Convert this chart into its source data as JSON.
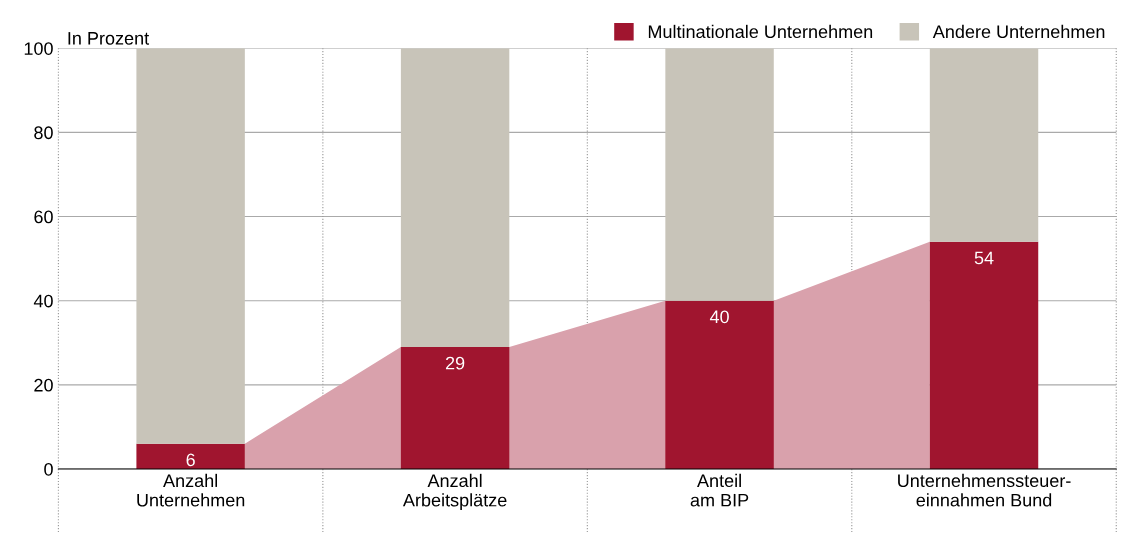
{
  "chart_data": {
    "type": "bar",
    "stacked": true,
    "ylabel": "In Prozent",
    "categories": [
      "Anzahl\nUnternehmen",
      "Anzahl\nArbeitsplätze",
      "Anteil\nam BIP",
      "Unternehmenssteuer-\neinnahmen Bund"
    ],
    "series": [
      {
        "name": "Multinationale Unternehmen",
        "color": "#a0152f",
        "values": [
          6,
          29,
          40,
          54
        ],
        "value_labels": [
          "6",
          "29",
          "40",
          "54"
        ]
      },
      {
        "name": "Andere Unternehmen",
        "color": "#c8c4b9",
        "values": [
          94,
          71,
          60,
          46
        ]
      }
    ],
    "ylim": [
      0,
      100
    ],
    "yticks": [
      0,
      20,
      40,
      60,
      80,
      100
    ],
    "grid": true,
    "legend": "top right"
  }
}
